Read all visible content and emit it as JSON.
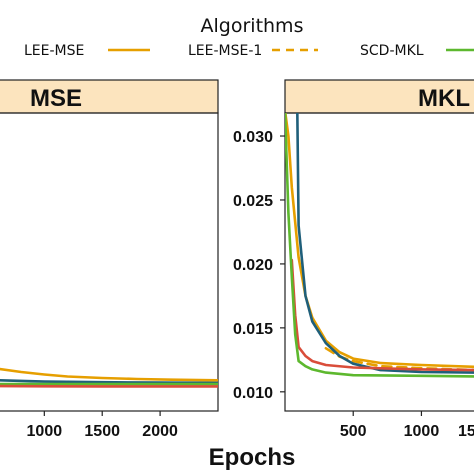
{
  "chart_data": {
    "type": "line",
    "legend": {
      "title": "Algorithms",
      "placement": "top",
      "entries": [
        {
          "name": "LEE-MSE",
          "color": "#E69F00",
          "dash": "solid"
        },
        {
          "name": "LEE-MSE-1",
          "color": "#E69F00",
          "dash": "dashed"
        },
        {
          "name": "SCD-MKL",
          "color": "#5DB82E",
          "dash": "solid"
        }
      ]
    },
    "xlabel": "Epochs",
    "panels": [
      {
        "strip": "MSE",
        "xlim": [
          600,
          2500
        ],
        "ylim": [
          0.0085,
          0.0318
        ],
        "x_ticks": [
          1000,
          1500,
          2000
        ],
        "y_ticks": [],
        "series": [
          {
            "color": "#E69F00",
            "dash": "solid",
            "x": [
              600,
              800,
              1000,
              1200,
              1500,
              1800,
              2100,
              2500
            ],
            "y": [
              0.0118,
              0.01155,
              0.01135,
              0.0112,
              0.01108,
              0.011,
              0.01095,
              0.0109
            ]
          },
          {
            "color": "#1F5F7A",
            "dash": "solid",
            "x": [
              600,
              1000,
              1500,
              2000,
              2500
            ],
            "y": [
              0.0109,
              0.0108,
              0.01075,
              0.01072,
              0.0107
            ]
          },
          {
            "color": "#5DB82E",
            "dash": "solid",
            "x": [
              600,
              1000,
              1500,
              2000,
              2500
            ],
            "y": [
              0.0106,
              0.0106,
              0.0106,
              0.0106,
              0.0106
            ]
          },
          {
            "color": "#D94D3A",
            "dash": "solid",
            "x": [
              600,
              1000,
              1500,
              2000,
              2500
            ],
            "y": [
              0.01045,
              0.01043,
              0.01042,
              0.01042,
              0.01042
            ]
          }
        ]
      },
      {
        "strip": "MKL",
        "xlim": [
          0,
          1400
        ],
        "ylim": [
          0.0085,
          0.0318
        ],
        "x_ticks": [
          500,
          1000
        ],
        "x_tick_labels_visible": [
          "500",
          "1000",
          "15"
        ],
        "y_ticks": [
          0.01,
          0.015,
          0.02,
          0.025,
          0.03
        ],
        "y_tick_labels": [
          "0.010",
          "0.015",
          "0.020",
          "0.025",
          "0.030"
        ],
        "series": [
          {
            "name": "LEE-MSE",
            "color": "#E69F00",
            "dash": "solid",
            "x": [
              0,
              25,
              50,
              100,
              150,
              200,
              300,
              400,
              500,
              700,
              1000,
              1400
            ],
            "y": [
              0.032,
              0.03,
              0.026,
              0.0205,
              0.0175,
              0.0158,
              0.014,
              0.0131,
              0.0126,
              0.01225,
              0.0121,
              0.01195
            ]
          },
          {
            "name": "LEE-MSE-1",
            "color": "#E69F00",
            "dash": "dashed",
            "x": [
              300,
              400,
              500,
              700,
              1000,
              1400
            ],
            "y": [
              0.0134,
              0.01275,
              0.0124,
              0.012,
              0.01185,
              0.0117
            ]
          },
          {
            "color": "#1F5F7A",
            "dash": "solid",
            "x": [
              90,
              100,
              150,
              200,
              300,
              400,
              500,
              700,
              1000,
              1400
            ],
            "y": [
              0.032,
              0.023,
              0.0175,
              0.0155,
              0.0138,
              0.0128,
              0.0122,
              0.0117,
              0.01155,
              0.0115
            ]
          },
          {
            "color": "#D94D3A",
            "dash": "solid",
            "x": [
              50,
              75,
              100,
              150,
              200,
              300,
              500,
              1000,
              1400
            ],
            "y": [
              0.0203,
              0.016,
              0.0135,
              0.0128,
              0.0124,
              0.0121,
              0.0119,
              0.01175,
              0.0117
            ]
          },
          {
            "name": "SCD-MKL",
            "color": "#5DB82E",
            "dash": "solid",
            "x": [
              0,
              25,
              50,
              75,
              100,
              150,
              200,
              300,
              500,
              1000,
              1400
            ],
            "y": [
              0.032,
              0.024,
              0.019,
              0.0145,
              0.0124,
              0.012,
              0.01175,
              0.0115,
              0.0113,
              0.01125,
              0.0112
            ]
          }
        ]
      }
    ]
  }
}
